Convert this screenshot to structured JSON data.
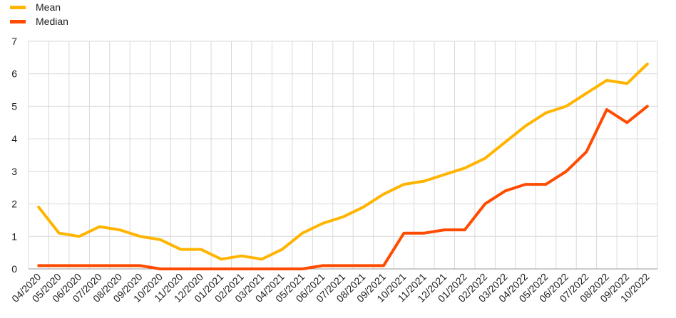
{
  "chart_data": {
    "type": "line",
    "title": "",
    "xlabel": "",
    "ylabel": "",
    "ylim": [
      0,
      7
    ],
    "yticks": [
      "0",
      "1",
      "2",
      "3",
      "4",
      "5",
      "6",
      "7"
    ],
    "grid": true,
    "legend_position": "top-left",
    "categories": [
      "04/2020",
      "05/2020",
      "06/2020",
      "07/2020",
      "08/2020",
      "09/2020",
      "10/2020",
      "11/2020",
      "12/2020",
      "01/2021",
      "02/2021",
      "03/2021",
      "04/2021",
      "05/2021",
      "06/2021",
      "07/2021",
      "08/2021",
      "09/2021",
      "10/2021",
      "11/2021",
      "12/2021",
      "01/2022",
      "02/2022",
      "03/2022",
      "04/2022",
      "05/2022",
      "06/2022",
      "07/2022",
      "08/2022",
      "09/2022",
      "10/2022"
    ],
    "series": [
      {
        "name": "Mean",
        "color": "#FFB400",
        "values": [
          1.9,
          1.1,
          1.0,
          1.3,
          1.2,
          1.0,
          0.9,
          0.6,
          0.6,
          0.3,
          0.4,
          0.3,
          0.6,
          1.1,
          1.4,
          1.6,
          1.9,
          2.3,
          2.6,
          2.7,
          2.9,
          3.1,
          3.4,
          3.9,
          4.4,
          4.8,
          5.0,
          5.4,
          5.8,
          5.7,
          6.3
        ]
      },
      {
        "name": "Median",
        "color": "#FF4B00",
        "values": [
          0.1,
          0.1,
          0.1,
          0.1,
          0.1,
          0.1,
          0.0,
          0.0,
          0.0,
          0.0,
          0.0,
          0.0,
          0.0,
          0.0,
          0.1,
          0.1,
          0.1,
          0.1,
          1.1,
          1.1,
          1.2,
          1.2,
          2.0,
          2.4,
          2.6,
          2.6,
          3.0,
          3.6,
          4.9,
          4.5,
          5.0
        ]
      }
    ]
  },
  "colors": {
    "grid": "#d9d9d9",
    "axis": "#999999",
    "text": "#222222"
  }
}
